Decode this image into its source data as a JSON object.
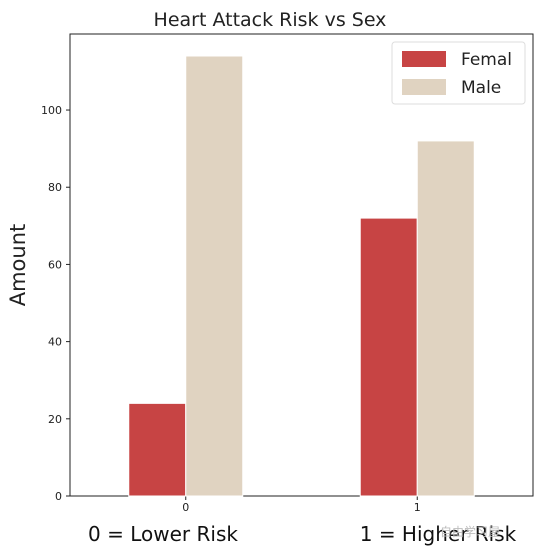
{
  "chart_data": {
    "type": "bar",
    "title": "Heart Attack Risk vs Sex",
    "xlabel_left": "0 = Lower Risk",
    "xlabel_right": "1 = Higher Risk",
    "ylabel": "Amount",
    "categories": [
      "0",
      "1"
    ],
    "series": [
      {
        "name": "Femal",
        "values": [
          24,
          72
        ],
        "color": "#c74444"
      },
      {
        "name": "Male",
        "values": [
          114,
          92
        ],
        "color": "#e0d3c1"
      }
    ],
    "yticks": [
      0,
      20,
      40,
      60,
      80,
      100
    ],
    "ylim": [
      0,
      119.7
    ],
    "grid": false,
    "legend_position": "top-right"
  },
  "watermark": "自由学习屋"
}
